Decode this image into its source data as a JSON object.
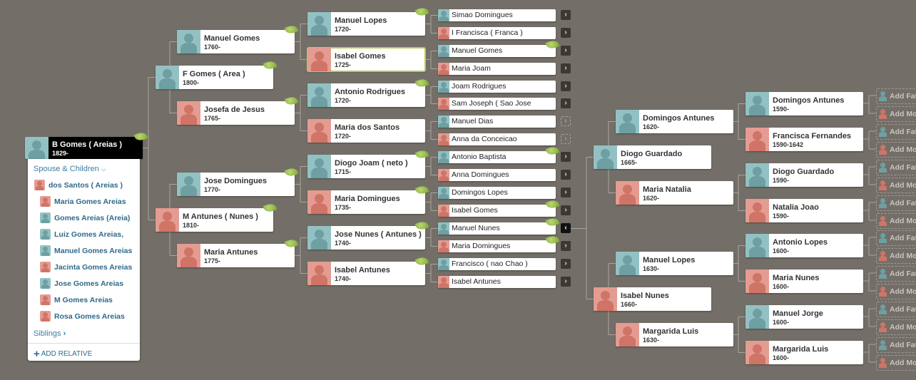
{
  "colors": {
    "background": "#736f68",
    "male": "#93c1c3",
    "female": "#e49c92",
    "selected_outline": "#b7cc5a",
    "root_card": "#000000"
  },
  "root": {
    "name": "B Gomes ( Areias )",
    "dates": "1829-",
    "gender": "m",
    "leaf": true
  },
  "panel": {
    "spouse_children_label": "Spouse & Children",
    "spouse_children_icon": "chevron-down-icon",
    "spouse": {
      "name": "dos Santos ( Areias )",
      "gender": "f"
    },
    "children": [
      {
        "name": "Maria Gomes Areias",
        "gender": "f"
      },
      {
        "name": "Gomes Areias (Areia)",
        "gender": "m"
      },
      {
        "name": "Luiz Gomes Areias,",
        "gender": "m"
      },
      {
        "name": "Manuel Gomes Areias",
        "gender": "m"
      },
      {
        "name": "Jacinta Gomes Areias",
        "gender": "f"
      },
      {
        "name": "Jose Gomes Areias",
        "gender": "m"
      },
      {
        "name": "M Gomes Areias",
        "gender": "f"
      },
      {
        "name": "Rosa Gomes Areias",
        "gender": "f"
      }
    ],
    "siblings_label": "Siblings",
    "add_relative_label": "ADD RELATIVE"
  },
  "pedigree": {
    "parents": [
      {
        "name": "F Gomes ( Area )",
        "dates": "1800-",
        "gender": "m",
        "leaf": true
      },
      {
        "name": "M Antunes ( Nunes )",
        "dates": "1810-",
        "gender": "f",
        "leaf": true
      }
    ],
    "grandparents": [
      {
        "name": "Manuel Gomes",
        "dates": "1760-",
        "gender": "m",
        "leaf": true
      },
      {
        "name": "Josefa de Jesus",
        "dates": "1765-",
        "gender": "f",
        "leaf": true
      },
      {
        "name": "Jose Domingues",
        "dates": "1770-",
        "gender": "m",
        "leaf": true
      },
      {
        "name": "Maria Antunes",
        "dates": "1775-",
        "gender": "f",
        "leaf": true
      }
    ],
    "great_grandparents": [
      {
        "name": "Manuel Lopes",
        "dates": "1720-",
        "gender": "m",
        "leaf": true
      },
      {
        "name": "Isabel Gomes",
        "dates": "1725-",
        "gender": "f",
        "leaf": false,
        "selected": true
      },
      {
        "name": "Antonio Rodrigues",
        "dates": "1720-",
        "gender": "m",
        "leaf": true
      },
      {
        "name": "Maria dos Santos",
        "dates": "1720-",
        "gender": "f",
        "leaf": false
      },
      {
        "name": "Diogo Joam ( neto )",
        "dates": "1715-",
        "gender": "m",
        "leaf": true
      },
      {
        "name": "Maria Domingues",
        "dates": "1735-",
        "gender": "f",
        "leaf": true
      },
      {
        "name": "Jose Nunes ( Antunes )",
        "dates": "1740-",
        "gender": "m",
        "leaf": true
      },
      {
        "name": "Isabel Antunes",
        "dates": "1740-",
        "gender": "f",
        "leaf": true
      }
    ],
    "gen4": [
      {
        "name": "Simao Domingues",
        "gender": "m",
        "expander": "more"
      },
      {
        "name": "I Francisca ( Franca )",
        "gender": "f",
        "expander": "more"
      },
      {
        "name": "Manuel Gomes",
        "gender": "m",
        "leaf": true,
        "expander": "more"
      },
      {
        "name": "Maria Joam",
        "gender": "f",
        "expander": "more"
      },
      {
        "name": "Joam Rodrigues",
        "gender": "m",
        "expander": "more"
      },
      {
        "name": "Sam Joseph ( Sao Jose",
        "gender": "f",
        "expander": "more"
      },
      {
        "name": "Manuel Dias",
        "gender": "m",
        "expander": "empty"
      },
      {
        "name": "Anna da Conceicao",
        "gender": "f",
        "expander": "empty"
      },
      {
        "name": "Antonio Baptista",
        "gender": "m",
        "leaf": true,
        "expander": "more"
      },
      {
        "name": "Anna Domingues",
        "gender": "f",
        "expander": "more"
      },
      {
        "name": "Domingos Lopes",
        "gender": "m",
        "expander": "more"
      },
      {
        "name": "Isabel Gomes",
        "gender": "f",
        "leaf": true,
        "expander": "more"
      },
      {
        "name": "Manuel Nunes",
        "gender": "m",
        "leaf": true,
        "expander": "back"
      },
      {
        "name": "Maria Domingues",
        "gender": "f",
        "leaf": true,
        "expander": "more"
      },
      {
        "name": "Francisco ( nao Chao )",
        "gender": "m",
        "expander": "more"
      },
      {
        "name": "Isabel Antunes",
        "gender": "f",
        "expander": "more"
      }
    ],
    "expander_glyphs": {
      "more": "›",
      "empty": "›",
      "back": "‹"
    }
  },
  "extended": {
    "parents": [
      {
        "name": "Diogo Guardado",
        "dates": "1665-",
        "gender": "m"
      },
      {
        "name": "Isabel Nunes",
        "dates": "1660-",
        "gender": "f"
      }
    ],
    "grandparents": [
      {
        "name": "Domingos Antunes",
        "dates": "1620-",
        "gender": "m"
      },
      {
        "name": "Maria Natalia",
        "dates": "1620-",
        "gender": "f"
      },
      {
        "name": "Manuel Lopes",
        "dates": "1630-",
        "gender": "m"
      },
      {
        "name": "Margarida Luis",
        "dates": "1630-",
        "gender": "f"
      }
    ],
    "great_grandparents": [
      {
        "name": "Domingos Antunes",
        "dates": "1590-",
        "gender": "m"
      },
      {
        "name": "Francisca Fernandes",
        "dates": "1590-1642",
        "gender": "f"
      },
      {
        "name": "Diogo Guardado",
        "dates": "1590-",
        "gender": "m"
      },
      {
        "name": "Natalia Joao",
        "dates": "1590-",
        "gender": "f"
      },
      {
        "name": "Antonio Lopes",
        "dates": "1600-",
        "gender": "m"
      },
      {
        "name": "Maria Nunes",
        "dates": "1600-",
        "gender": "f"
      },
      {
        "name": "Manuel Jorge",
        "dates": "1600-",
        "gender": "m"
      },
      {
        "name": "Margarida Luis",
        "dates": "1600-",
        "gender": "f"
      }
    ],
    "add_father_label": "Add Father",
    "add_mother_label": "Add Mother"
  }
}
